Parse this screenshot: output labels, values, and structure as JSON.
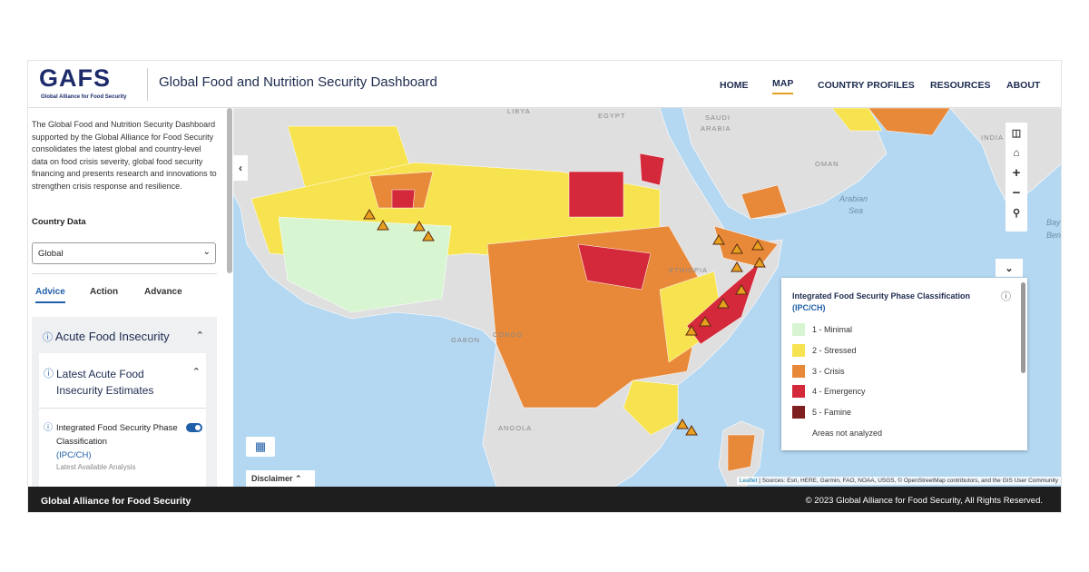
{
  "header": {
    "logo": "GAFS",
    "logo_subtitle": "Global Alliance for Food Security",
    "title": "Global Food and Nutrition Security Dashboard",
    "nav": [
      "HOME",
      "MAP",
      "COUNTRY PROFILES",
      "RESOURCES",
      "ABOUT"
    ]
  },
  "sidebar": {
    "description": "The Global Food and Nutrition Security Dashboard supported by the Global Alliance for Food Security consolidates the latest global and country-level data on food crisis severity, global food security financing and presents research and innovations to strengthen crisis response and resilience.",
    "country_data_label": "Country Data",
    "country_select": "Global",
    "tabs": [
      "Advice",
      "Action",
      "Advance"
    ],
    "section": "Acute Food Insecurity",
    "subsection": "Latest Acute Food Insecurity Estimates",
    "layer": {
      "name": "Integrated Food Security Phase Classification",
      "code": "(IPC/CH)",
      "note": "Latest Available Analysis"
    }
  },
  "map": {
    "labels": [
      "LIBYA",
      "EGYPT",
      "SAUDI",
      "ARABIA",
      "INDIA",
      "OMAN",
      "Arabian",
      "Sea",
      "Bay",
      "Ben",
      "ETHIOPIA",
      "GABON",
      "CONGO",
      "ANGOLA"
    ],
    "legend": {
      "title": "Integrated Food Security Phase Classification",
      "code": "(IPC/CH)",
      "items": [
        {
          "label": "1 - Minimal",
          "color": "#d8f5d2"
        },
        {
          "label": "2 - Stressed",
          "color": "#f7e34f"
        },
        {
          "label": "3 - Crisis",
          "color": "#e8893a"
        },
        {
          "label": "4 - Emergency",
          "color": "#d3293a"
        },
        {
          "label": "5 - Famine",
          "color": "#7e2020"
        },
        {
          "label": "Areas not analyzed",
          "color": null
        }
      ]
    },
    "disclaimer": "Disclaimer",
    "attribution_link": "Leaflet",
    "attribution": "| Sources: Esri, HERE, Garmin, FAO, NOAA, USGS, © OpenStreetMap contributors, and the GIS User Community"
  },
  "footer": {
    "left": "Global Alliance for Food Security",
    "right": "© 2023 Global Alliance for Food Security, All Rights Reserved."
  }
}
